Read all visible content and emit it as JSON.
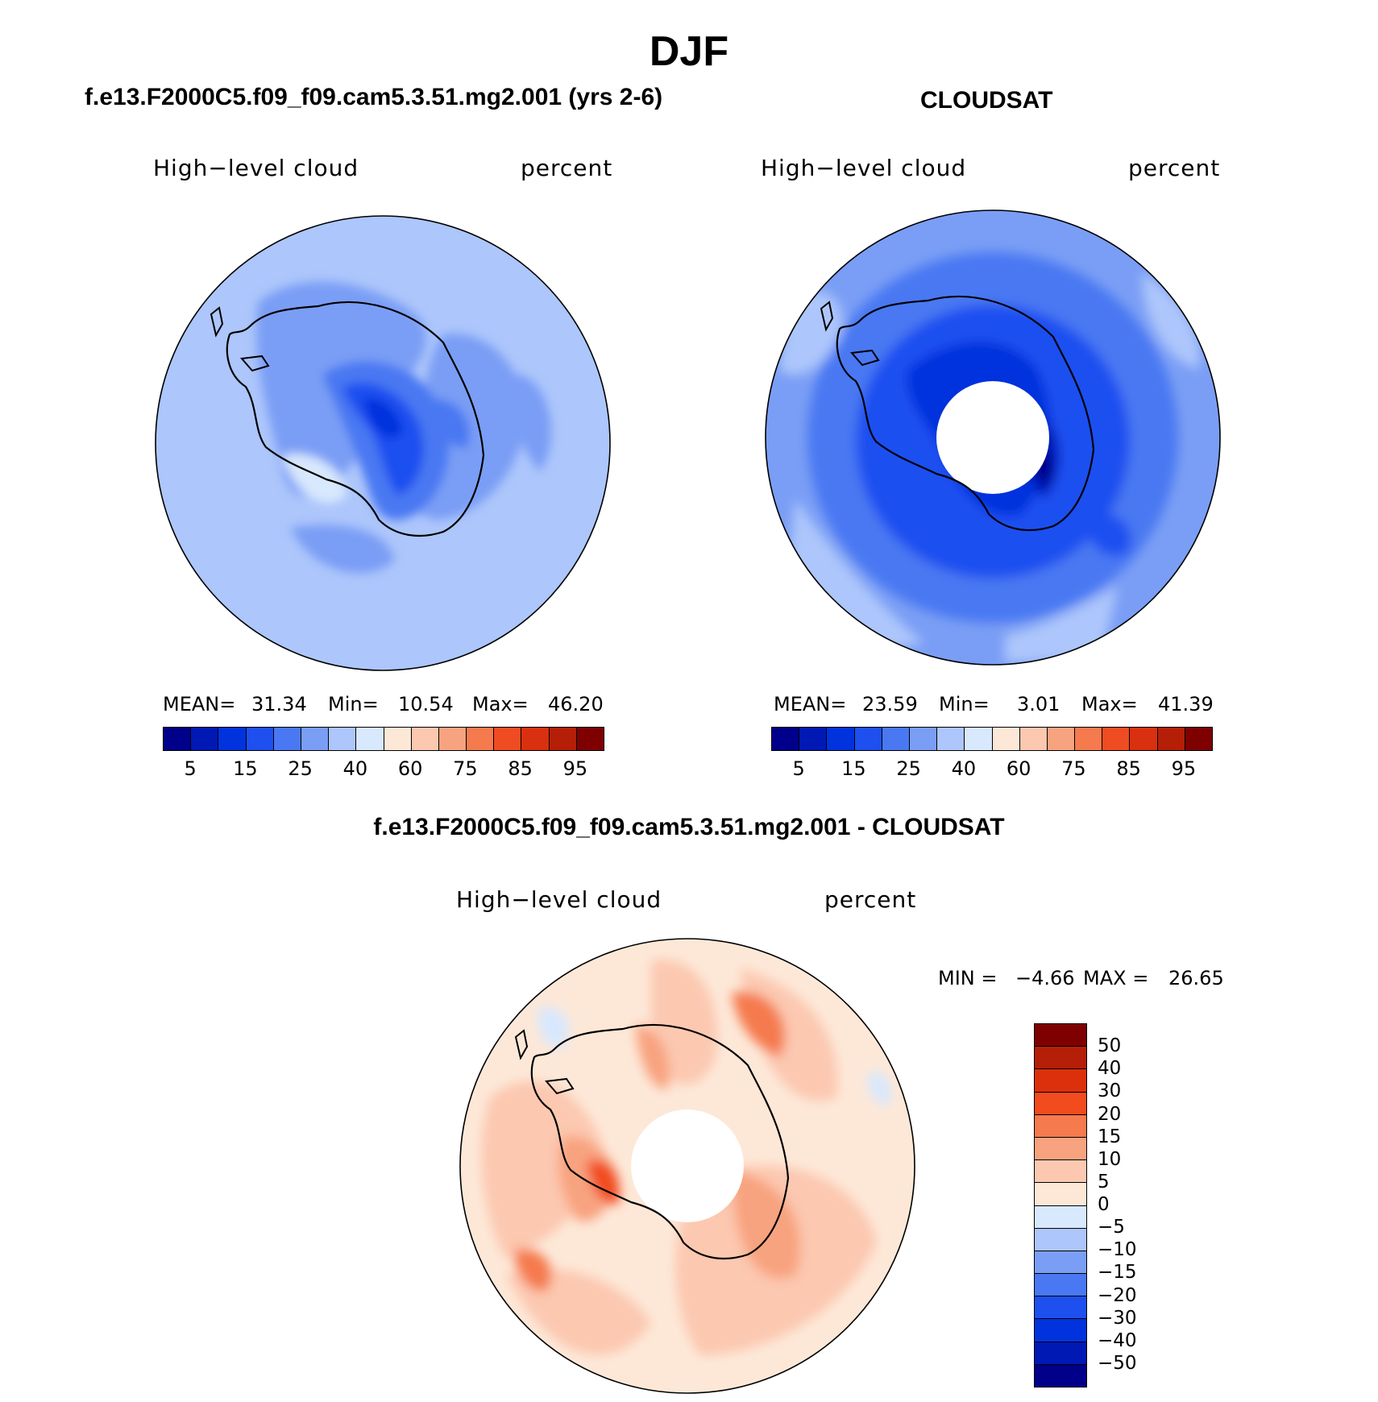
{
  "figure": {
    "season": "DJF",
    "left_title": "f.e13.F2000C5.f09_f09.cam5.3.51.mg2.001 (yrs 2-6)",
    "right_title": "CLOUDSAT",
    "diff_title": "f.e13.F2000C5.f09_f09.cam5.3.51.mg2.001 - CLOUDSAT"
  },
  "panels": {
    "model": {
      "variable": "High−level cloud",
      "units": "percent",
      "mean_label": "MEAN=",
      "mean": "31.34",
      "min_label": "Min=",
      "min": "10.54",
      "max_label": "Max=",
      "max": "46.20"
    },
    "obs": {
      "variable": "High−level cloud",
      "units": "percent",
      "mean_label": "MEAN=",
      "mean": "23.59",
      "min_label": "Min=",
      "min": "3.01",
      "max_label": "Max=",
      "max": "41.39"
    },
    "diff": {
      "variable": "High−level cloud",
      "units": "percent",
      "min_label": "MIN =",
      "min": "−4.66",
      "max_label": "MAX =",
      "max": "26.65"
    }
  },
  "colors": {
    "abs_colorbar": [
      "#00008b",
      "#0019b5",
      "#0033dd",
      "#1e50f0",
      "#4a78f2",
      "#7a9ef5",
      "#adc6fb",
      "#d8e8fd",
      "#fde8d8",
      "#fcc8b0",
      "#f8a37f",
      "#f57a4e",
      "#f04c22",
      "#d93010",
      "#b51f08",
      "#7f0000"
    ],
    "diff_colorbar_top_to_bottom": [
      "#7f0000",
      "#b51f08",
      "#dc300c",
      "#f24c1e",
      "#f57a4e",
      "#f8a37f",
      "#fcc8b0",
      "#fde8d8",
      "#d8e8fd",
      "#adc6fb",
      "#7a9ef5",
      "#4a78f2",
      "#1e50f0",
      "#0033dd",
      "#0019b5",
      "#00008b"
    ]
  },
  "chart_data": [
    {
      "type": "heatmap",
      "projection": "south-polar-stereographic",
      "title": "f.e13.F2000C5.f09_f09.cam5.3.51.mg2.001 (yrs 2-6)",
      "variable": "High−level cloud",
      "units": "percent",
      "stats": {
        "mean": 31.34,
        "min": 10.54,
        "max": 46.2
      },
      "contour_levels": [
        5,
        10,
        15,
        20,
        25,
        30,
        40,
        50,
        60,
        70,
        75,
        80,
        85,
        90,
        95
      ],
      "tick_labels": [
        "5",
        "15",
        "25",
        "40",
        "60",
        "75",
        "85",
        "95"
      ]
    },
    {
      "type": "heatmap",
      "projection": "south-polar-stereographic",
      "title": "CLOUDSAT",
      "variable": "High−level cloud",
      "units": "percent",
      "stats": {
        "mean": 23.59,
        "min": 3.01,
        "max": 41.39
      },
      "contour_levels": [
        5,
        10,
        15,
        20,
        25,
        30,
        40,
        50,
        60,
        70,
        75,
        80,
        85,
        90,
        95
      ],
      "tick_labels": [
        "5",
        "15",
        "25",
        "40",
        "60",
        "75",
        "85",
        "95"
      ],
      "missing_pole_region": true
    },
    {
      "type": "heatmap",
      "projection": "south-polar-stereographic",
      "title": "f.e13.F2000C5.f09_f09.cam5.3.51.mg2.001 - CLOUDSAT",
      "variable": "High−level cloud",
      "units": "percent",
      "stats": {
        "min": -4.66,
        "max": 26.65
      },
      "contour_levels": [
        -50,
        -40,
        -30,
        -20,
        -15,
        -10,
        -5,
        0,
        5,
        10,
        15,
        20,
        30,
        40,
        50
      ],
      "tick_labels": [
        "50",
        "40",
        "30",
        "20",
        "15",
        "10",
        "5",
        "0",
        "−5",
        "−10",
        "−15",
        "−20",
        "−30",
        "−40",
        "−50"
      ],
      "missing_pole_region": true
    }
  ]
}
